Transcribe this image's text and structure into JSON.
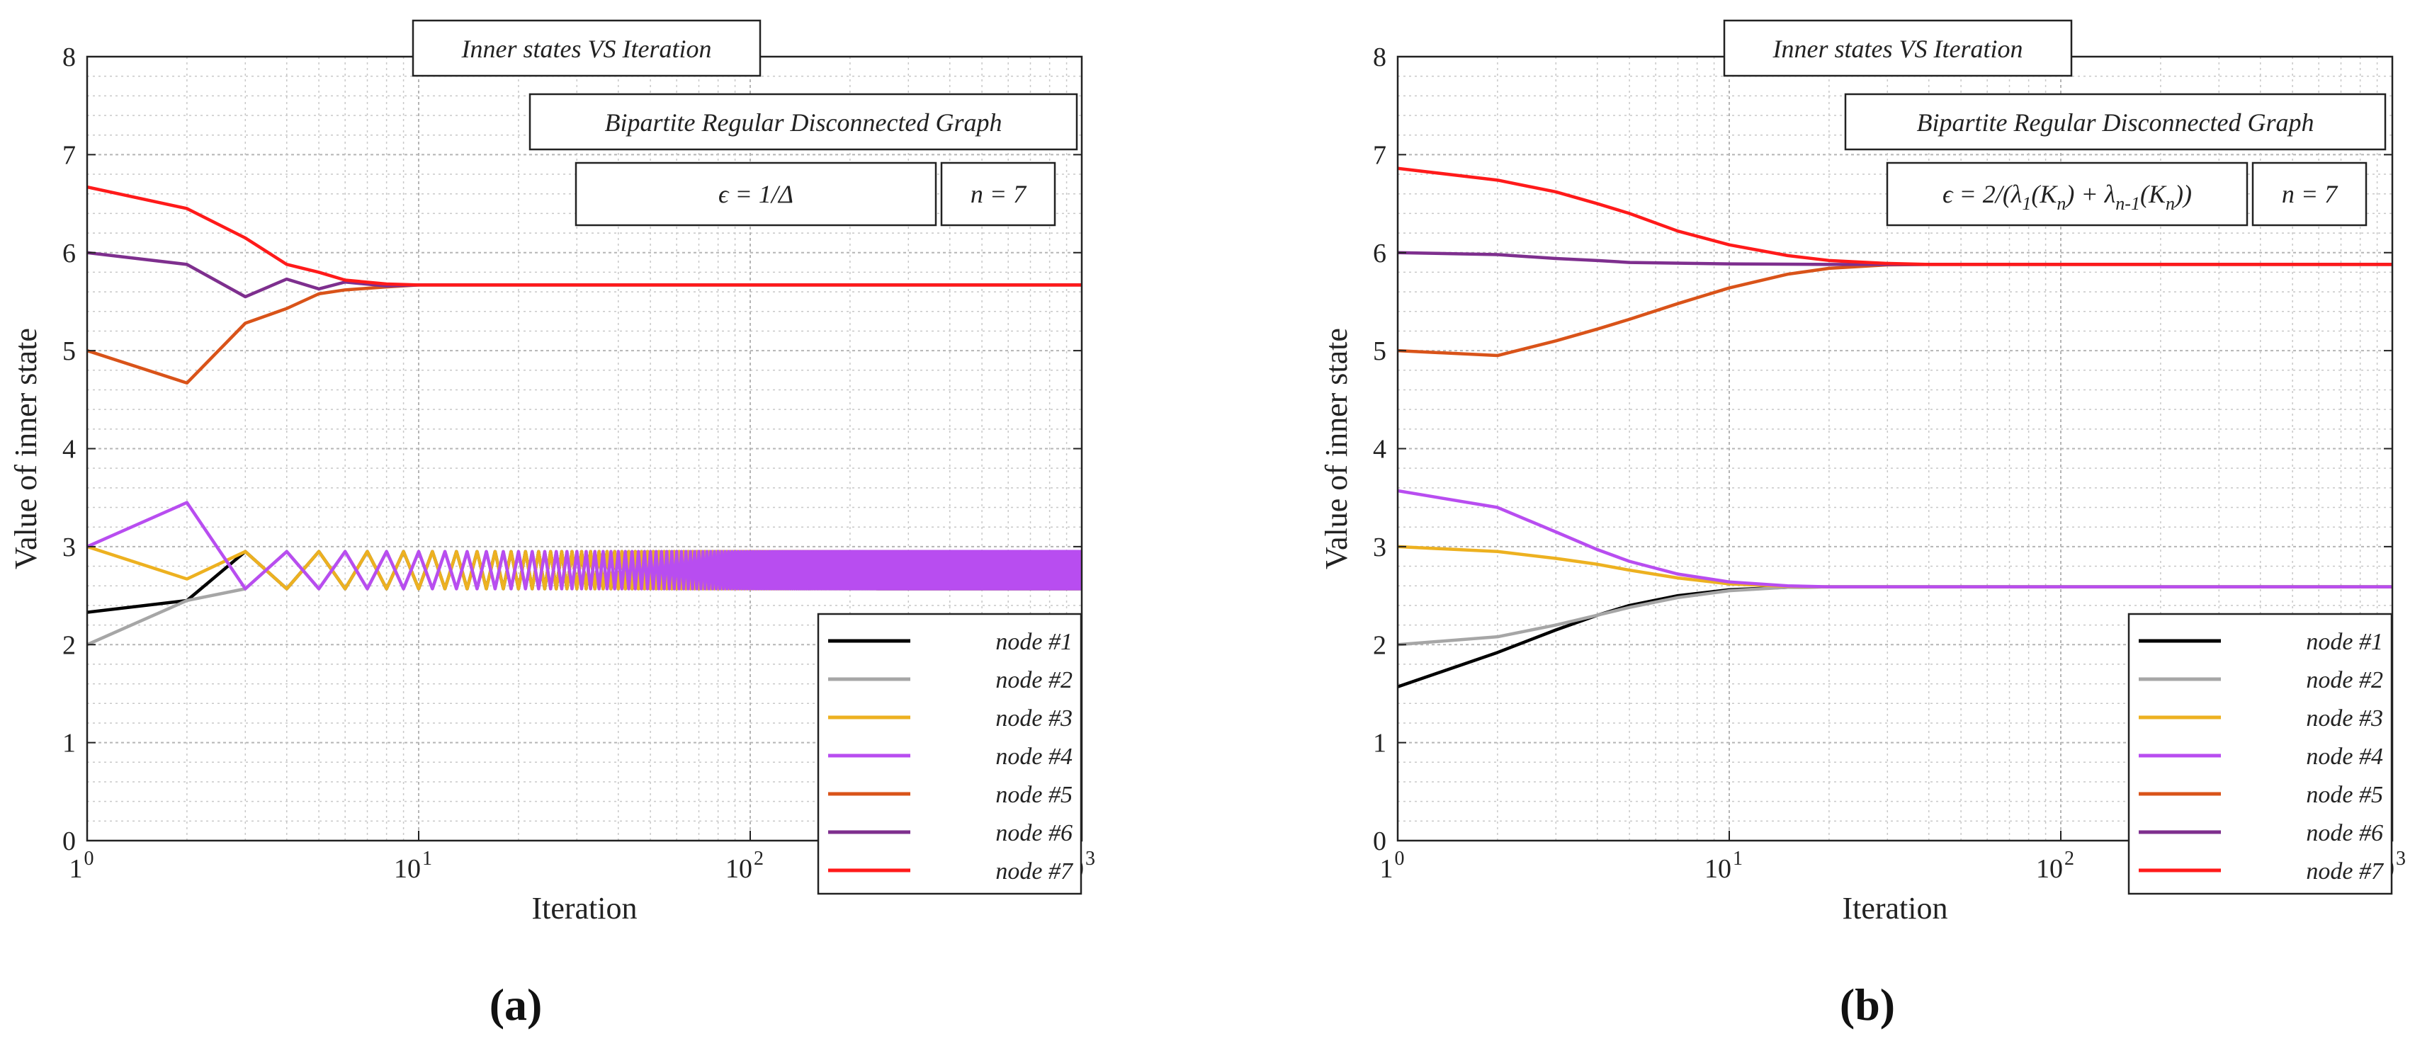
{
  "chart_data": [
    {
      "type": "line",
      "title": "Inner states VS Iteration",
      "annotation": "Bipartite Regular Disconnected Graph",
      "epsilon_label": "ϵ = 1/Δ",
      "n_label": "n = 7",
      "xlabel": "Iteration",
      "ylabel": "Value of inner state",
      "xscale": "log",
      "xlim": [
        1,
        1000
      ],
      "ylim": [
        0,
        8
      ],
      "grid": true,
      "legend_position": "bottom-right",
      "xtick_labels": [
        "1",
        "10",
        "10",
        "10"
      ],
      "xtick_exponents": [
        "0",
        "1",
        "2",
        "3"
      ],
      "ytick_labels": [
        "0",
        "1",
        "2",
        "3",
        "4",
        "5",
        "6",
        "7",
        "8"
      ],
      "subfigure_label": "(a)",
      "series": [
        {
          "name": "node #1",
          "color": "#000000",
          "values": [
            [
              1,
              2.33
            ],
            [
              2,
              2.45
            ],
            [
              3,
              2.95
            ],
            [
              4,
              2.57
            ],
            [
              5,
              2.95
            ],
            [
              1000,
              2.75
            ]
          ],
          "oscillate": {
            "from": 4,
            "lo": 2.57,
            "hi": 2.95
          }
        },
        {
          "name": "node #2",
          "color": "#a6a6a6",
          "values": [
            [
              1,
              2.0
            ],
            [
              2,
              2.45
            ],
            [
              3,
              2.57
            ],
            [
              4,
              2.95
            ],
            [
              5,
              2.57
            ],
            [
              1000,
              2.75
            ]
          ],
          "oscillate": {
            "from": 3,
            "lo": 2.57,
            "hi": 2.95
          }
        },
        {
          "name": "node #3",
          "color": "#edb120",
          "values": [
            [
              1,
              3.0
            ],
            [
              2,
              2.67
            ],
            [
              3,
              2.95
            ],
            [
              4,
              2.57
            ],
            [
              5,
              2.95
            ],
            [
              1000,
              2.75
            ]
          ],
          "oscillate": {
            "from": 3,
            "lo": 2.57,
            "hi": 2.95
          }
        },
        {
          "name": "node #4",
          "color": "#b84df0",
          "values": [
            [
              1,
              3.0
            ],
            [
              2,
              3.45
            ],
            [
              3,
              2.57
            ],
            [
              4,
              2.95
            ],
            [
              5,
              2.57
            ],
            [
              1000,
              2.75
            ]
          ],
          "oscillate": {
            "from": 3,
            "lo": 2.57,
            "hi": 2.95
          }
        },
        {
          "name": "node #5",
          "color": "#d95319",
          "values": [
            [
              1,
              5.0
            ],
            [
              2,
              4.67
            ],
            [
              3,
              5.28
            ],
            [
              4,
              5.43
            ],
            [
              5,
              5.58
            ],
            [
              6,
              5.62
            ],
            [
              8,
              5.65
            ],
            [
              10,
              5.67
            ],
            [
              1000,
              5.67
            ]
          ]
        },
        {
          "name": "node #6",
          "color": "#7e2f8e",
          "values": [
            [
              1,
              6.0
            ],
            [
              2,
              5.88
            ],
            [
              3,
              5.55
            ],
            [
              4,
              5.73
            ],
            [
              5,
              5.63
            ],
            [
              6,
              5.7
            ],
            [
              8,
              5.66
            ],
            [
              10,
              5.67
            ],
            [
              1000,
              5.67
            ]
          ]
        },
        {
          "name": "node #7",
          "color": "#ff1a1a",
          "values": [
            [
              1,
              6.67
            ],
            [
              2,
              6.45
            ],
            [
              3,
              6.15
            ],
            [
              4,
              5.88
            ],
            [
              5,
              5.8
            ],
            [
              6,
              5.72
            ],
            [
              8,
              5.68
            ],
            [
              10,
              5.67
            ],
            [
              1000,
              5.67
            ]
          ]
        }
      ]
    },
    {
      "type": "line",
      "title": "Inner states VS Iteration",
      "annotation": "Bipartite Regular Disconnected Graph",
      "epsilon_label": "ϵ = 2/(λ1(Kn) + λn-1(Kn))",
      "n_label": "n = 7",
      "xlabel": "Iteration",
      "ylabel": "Value of inner state",
      "xscale": "log",
      "xlim": [
        1,
        1000
      ],
      "ylim": [
        0,
        8
      ],
      "grid": true,
      "legend_position": "bottom-right",
      "xtick_labels": [
        "1",
        "10",
        "10",
        "10"
      ],
      "xtick_exponents": [
        "0",
        "1",
        "2",
        "3"
      ],
      "ytick_labels": [
        "0",
        "1",
        "2",
        "3",
        "4",
        "5",
        "6",
        "7",
        "8"
      ],
      "subfigure_label": "(b)",
      "series": [
        {
          "name": "node #1",
          "color": "#000000",
          "values": [
            [
              1,
              1.57
            ],
            [
              2,
              1.92
            ],
            [
              3,
              2.15
            ],
            [
              4,
              2.3
            ],
            [
              5,
              2.4
            ],
            [
              7,
              2.5
            ],
            [
              10,
              2.56
            ],
            [
              15,
              2.585
            ],
            [
              20,
              2.59
            ],
            [
              1000,
              2.59
            ]
          ]
        },
        {
          "name": "node #2",
          "color": "#a6a6a6",
          "values": [
            [
              1,
              2.0
            ],
            [
              2,
              2.08
            ],
            [
              3,
              2.2
            ],
            [
              4,
              2.3
            ],
            [
              5,
              2.38
            ],
            [
              7,
              2.48
            ],
            [
              10,
              2.55
            ],
            [
              15,
              2.585
            ],
            [
              20,
              2.59
            ],
            [
              1000,
              2.59
            ]
          ]
        },
        {
          "name": "node #3",
          "color": "#edb120",
          "values": [
            [
              1,
              3.0
            ],
            [
              2,
              2.95
            ],
            [
              3,
              2.88
            ],
            [
              4,
              2.82
            ],
            [
              5,
              2.76
            ],
            [
              7,
              2.68
            ],
            [
              10,
              2.62
            ],
            [
              15,
              2.595
            ],
            [
              20,
              2.59
            ],
            [
              1000,
              2.59
            ]
          ]
        },
        {
          "name": "node #4",
          "color": "#b84df0",
          "values": [
            [
              1,
              3.57
            ],
            [
              2,
              3.4
            ],
            [
              3,
              3.15
            ],
            [
              4,
              2.97
            ],
            [
              5,
              2.85
            ],
            [
              7,
              2.72
            ],
            [
              10,
              2.64
            ],
            [
              15,
              2.6
            ],
            [
              20,
              2.59
            ],
            [
              1000,
              2.59
            ]
          ]
        },
        {
          "name": "node #5",
          "color": "#d95319",
          "values": [
            [
              1,
              5.0
            ],
            [
              2,
              4.95
            ],
            [
              3,
              5.1
            ],
            [
              4,
              5.22
            ],
            [
              5,
              5.32
            ],
            [
              7,
              5.48
            ],
            [
              10,
              5.64
            ],
            [
              15,
              5.78
            ],
            [
              20,
              5.84
            ],
            [
              30,
              5.875
            ],
            [
              40,
              5.88
            ],
            [
              1000,
              5.88
            ]
          ]
        },
        {
          "name": "node #6",
          "color": "#7e2f8e",
          "values": [
            [
              1,
              6.0
            ],
            [
              2,
              5.98
            ],
            [
              3,
              5.94
            ],
            [
              4,
              5.92
            ],
            [
              5,
              5.9
            ],
            [
              10,
              5.885
            ],
            [
              20,
              5.88
            ],
            [
              1000,
              5.88
            ]
          ]
        },
        {
          "name": "node #7",
          "color": "#ff1a1a",
          "values": [
            [
              1,
              6.86
            ],
            [
              2,
              6.74
            ],
            [
              3,
              6.62
            ],
            [
              4,
              6.5
            ],
            [
              5,
              6.4
            ],
            [
              7,
              6.22
            ],
            [
              10,
              6.08
            ],
            [
              15,
              5.97
            ],
            [
              20,
              5.92
            ],
            [
              30,
              5.89
            ],
            [
              40,
              5.88
            ],
            [
              1000,
              5.88
            ]
          ]
        }
      ]
    }
  ]
}
